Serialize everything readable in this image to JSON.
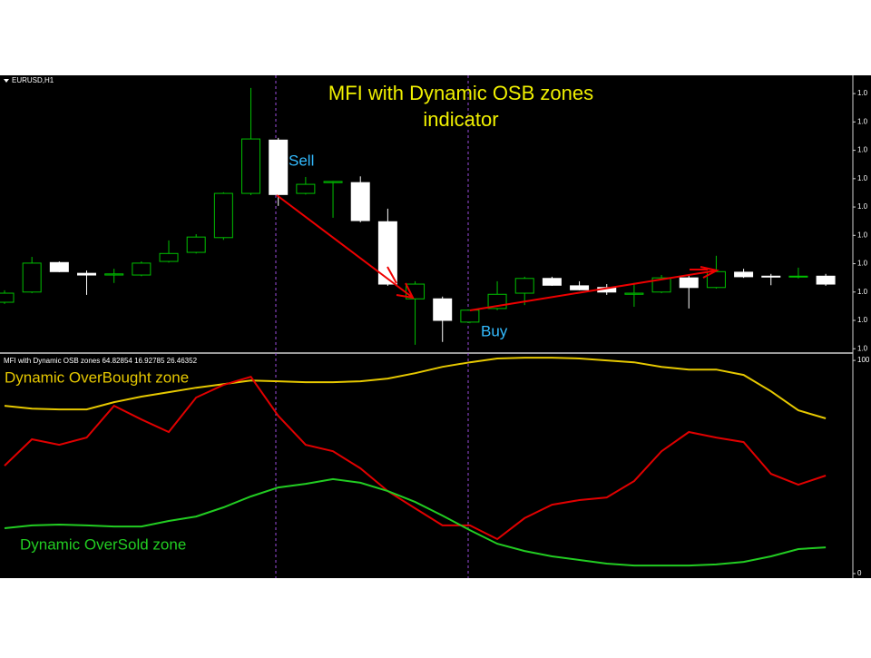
{
  "chart_data": [
    {
      "type": "candlestick",
      "symbol_label": "EURUSD,H1",
      "title": "MFI with Dynamic OSB zones indicator",
      "annotations": [
        "Sell",
        "Buy"
      ],
      "up_color": "#00c000",
      "down_color": "#ffffff",
      "open": [
        1.08632,
        1.0865,
        1.08702,
        1.08683,
        1.0868,
        1.0868,
        1.08704,
        1.0872,
        1.08746,
        1.08824,
        1.08918,
        1.08824,
        1.08843,
        1.08843,
        1.08774,
        1.08638,
        1.08638,
        1.08597,
        1.08621,
        1.08648,
        1.08674,
        1.08661,
        1.08658,
        1.08646,
        1.0865,
        1.08675,
        1.08658,
        1.08685,
        1.08678,
        1.08677,
        1.08678
      ],
      "high": [
        1.08653,
        1.08712,
        1.08704,
        1.08688,
        1.08691,
        1.08704,
        1.08741,
        1.08752,
        1.08826,
        1.0901,
        1.08922,
        1.08853,
        1.08846,
        1.08854,
        1.08797,
        1.08669,
        1.08642,
        1.08619,
        1.08669,
        1.08677,
        1.08677,
        1.08669,
        1.08664,
        1.08666,
        1.0868,
        1.0868,
        1.08714,
        1.08691,
        1.08682,
        1.08693,
        1.08682
      ],
      "low": [
        1.08629,
        1.08648,
        1.08685,
        1.08645,
        1.08666,
        1.08678,
        1.08702,
        1.08718,
        1.08742,
        1.08821,
        1.08802,
        1.08822,
        1.08781,
        1.08773,
        1.08661,
        1.08557,
        1.08562,
        1.08595,
        1.08618,
        1.08627,
        1.08661,
        1.08653,
        1.08645,
        1.08624,
        1.08648,
        1.08621,
        1.08656,
        1.08675,
        1.08662,
        1.08674,
        1.08661
      ],
      "close": [
        1.08648,
        1.08701,
        1.08686,
        1.0868,
        1.08682,
        1.08701,
        1.08718,
        1.08747,
        1.08824,
        1.0892,
        1.08822,
        1.0884,
        1.08845,
        1.08776,
        1.08664,
        1.08664,
        1.086,
        1.08618,
        1.08646,
        1.08674,
        1.08662,
        1.08654,
        1.0865,
        1.08648,
        1.08675,
        1.08658,
        1.08686,
        1.08677,
        1.08677,
        1.08678,
        1.08664
      ],
      "ylim": [
        1.08544,
        1.09021
      ],
      "yticks": [
        {
          "value": 1.09,
          "label": "1.0"
        },
        {
          "value": 1.0895,
          "label": "1.0"
        },
        {
          "value": 1.089,
          "label": "1.0"
        },
        {
          "value": 1.0885,
          "label": "1.0"
        },
        {
          "value": 1.088,
          "label": "1.0"
        },
        {
          "value": 1.0875,
          "label": "1.0"
        },
        {
          "value": 1.087,
          "label": "1.0"
        },
        {
          "value": 1.0865,
          "label": "1.0"
        },
        {
          "value": 1.086,
          "label": "1.0"
        },
        {
          "value": 1.0855,
          "label": "1.0"
        }
      ]
    },
    {
      "type": "line",
      "header": "MFI with Dynamic OSB zones 64.82854 16.92785 26.46352",
      "annotations": [
        "Dynamic OverBought zone",
        "Dynamic OverSold zone"
      ],
      "series": [
        {
          "color": "#e6c800",
          "values": [
            78.7,
            77.4,
            77.0,
            77.0,
            80.4,
            83.0,
            85.1,
            87.2,
            88.9,
            90.6,
            90.2,
            89.8,
            89.8,
            90.2,
            91.5,
            94.0,
            97.0,
            99.1,
            100.9,
            101.3,
            101.3,
            100.9,
            100.0,
            99.1,
            97.0,
            95.7,
            95.7,
            93.2,
            85.5,
            76.6,
            72.8
          ]
        },
        {
          "color": "#e00000",
          "values": [
            50.6,
            63.0,
            60.4,
            63.8,
            78.7,
            72.3,
            66.4,
            82.6,
            88.5,
            92.3,
            74.0,
            60.4,
            57.4,
            49.4,
            38.7,
            30.6,
            22.6,
            22.6,
            16.2,
            26.0,
            32.3,
            34.5,
            35.7,
            43.4,
            57.4,
            66.4,
            63.8,
            61.7,
            46.8,
            41.7,
            46.0
          ]
        },
        {
          "color": "#22cc22",
          "values": [
            21.3,
            22.6,
            23.0,
            22.6,
            22.1,
            22.1,
            24.7,
            26.8,
            31.1,
            36.2,
            40.4,
            42.1,
            44.3,
            42.6,
            38.7,
            33.6,
            27.2,
            20.4,
            14.0,
            10.6,
            8.1,
            6.4,
            4.7,
            3.8,
            3.8,
            3.8,
            4.3,
            5.5,
            8.1,
            11.5,
            12.3
          ]
        }
      ],
      "ylim": [
        -1.7,
        102.6
      ],
      "yticks": [
        100,
        0
      ]
    }
  ]
}
